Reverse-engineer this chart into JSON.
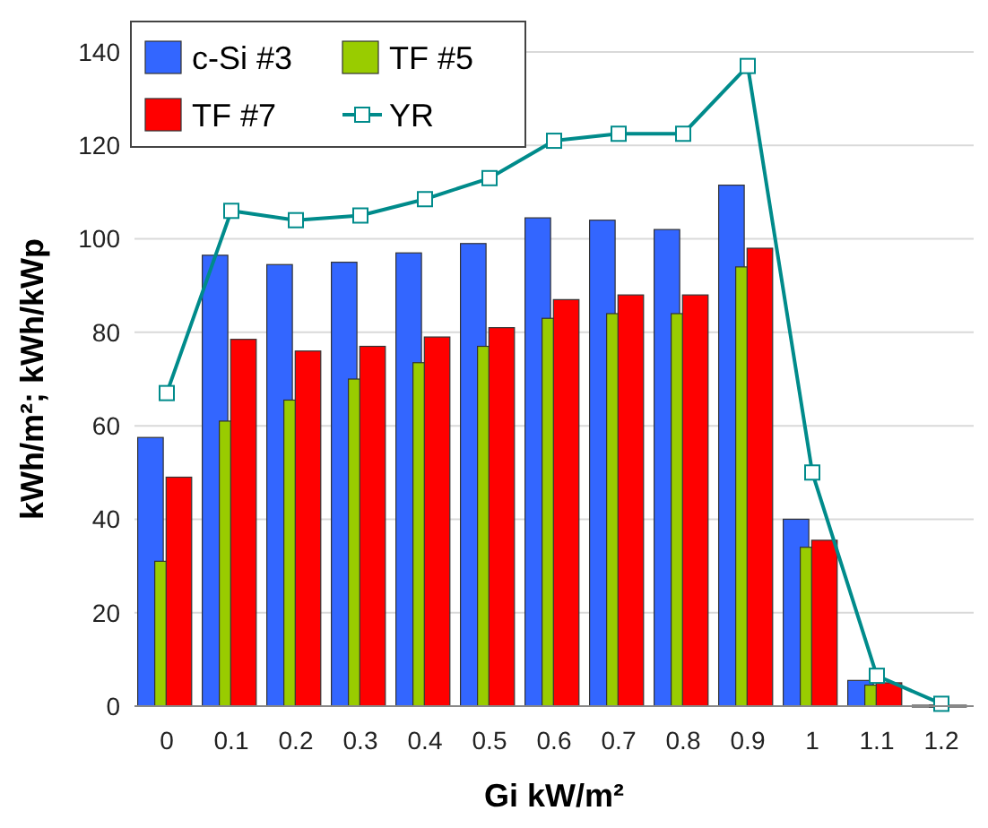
{
  "chart_data": {
    "type": "bar",
    "xlabel": "Gi kW/m²",
    "ylabel": "kWh/m²; kWh/kWp",
    "categories": [
      "0",
      "0.1",
      "0.2",
      "0.3",
      "0.4",
      "0.5",
      "0.6",
      "0.7",
      "0.8",
      "0.9",
      "1",
      "1.1",
      "1.2"
    ],
    "series": [
      {
        "name": "c-Si #3",
        "color": "#3366ff",
        "values": [
          57.5,
          96.5,
          94.5,
          95,
          97,
          99,
          104.5,
          104,
          102,
          111.5,
          40,
          5.5,
          0
        ]
      },
      {
        "name": "TF #5",
        "color": "#99cc00",
        "values": [
          31,
          61,
          65.5,
          70,
          73.5,
          77,
          83,
          84,
          84,
          94,
          34,
          4.5,
          0
        ]
      },
      {
        "name": "TF #7",
        "color": "#ff0000",
        "values": [
          49,
          78.5,
          76,
          77,
          79,
          81,
          87,
          88,
          88,
          98,
          35.5,
          5,
          0
        ]
      },
      {
        "name": "YR",
        "type": "line",
        "color": "#008b8b",
        "marker": "square",
        "values": [
          67,
          106,
          104,
          105,
          108.5,
          113,
          121,
          122.5,
          122.5,
          137,
          50,
          6.5,
          0.5
        ]
      }
    ],
    "ylim": [
      0,
      140
    ],
    "yticks": [
      0,
      20,
      40,
      60,
      80,
      100,
      120,
      140
    ],
    "grid": "y",
    "legend": "top left"
  }
}
